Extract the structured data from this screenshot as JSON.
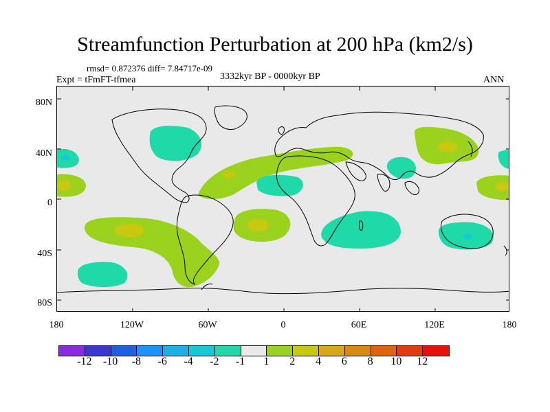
{
  "title": "Streamfunction Perturbation at 200 hPa (km2/s)",
  "stats_line": "rmsd= 0.872376 diff= 7.84717e-09",
  "experiment": "Expt = tFmFT-tfmea",
  "period": "3332kyr BP - 0000kyr BP",
  "season": "ANN",
  "lat_labels": [
    "80N",
    "40N",
    "0",
    "40S",
    "80S"
  ],
  "lon_labels": [
    "180",
    "120W",
    "60W",
    "0",
    "60E",
    "120E",
    "180"
  ],
  "colorbar": {
    "colors": [
      "#8a2be2",
      "#3a36d6",
      "#1f5fe0",
      "#1e90ff",
      "#19b2e8",
      "#12c9d6",
      "#1fd9a8",
      "#e9e9e9",
      "#9ad21e",
      "#c8c80f",
      "#d6aa10",
      "#d98a0a",
      "#e0620a",
      "#e53a0a",
      "#e8100a"
    ],
    "labels": [
      "-12",
      "-10",
      "-8",
      "-6",
      "-4",
      "-2",
      "-1",
      "1",
      "2",
      "4",
      "6",
      "8",
      "10",
      "12"
    ]
  }
}
